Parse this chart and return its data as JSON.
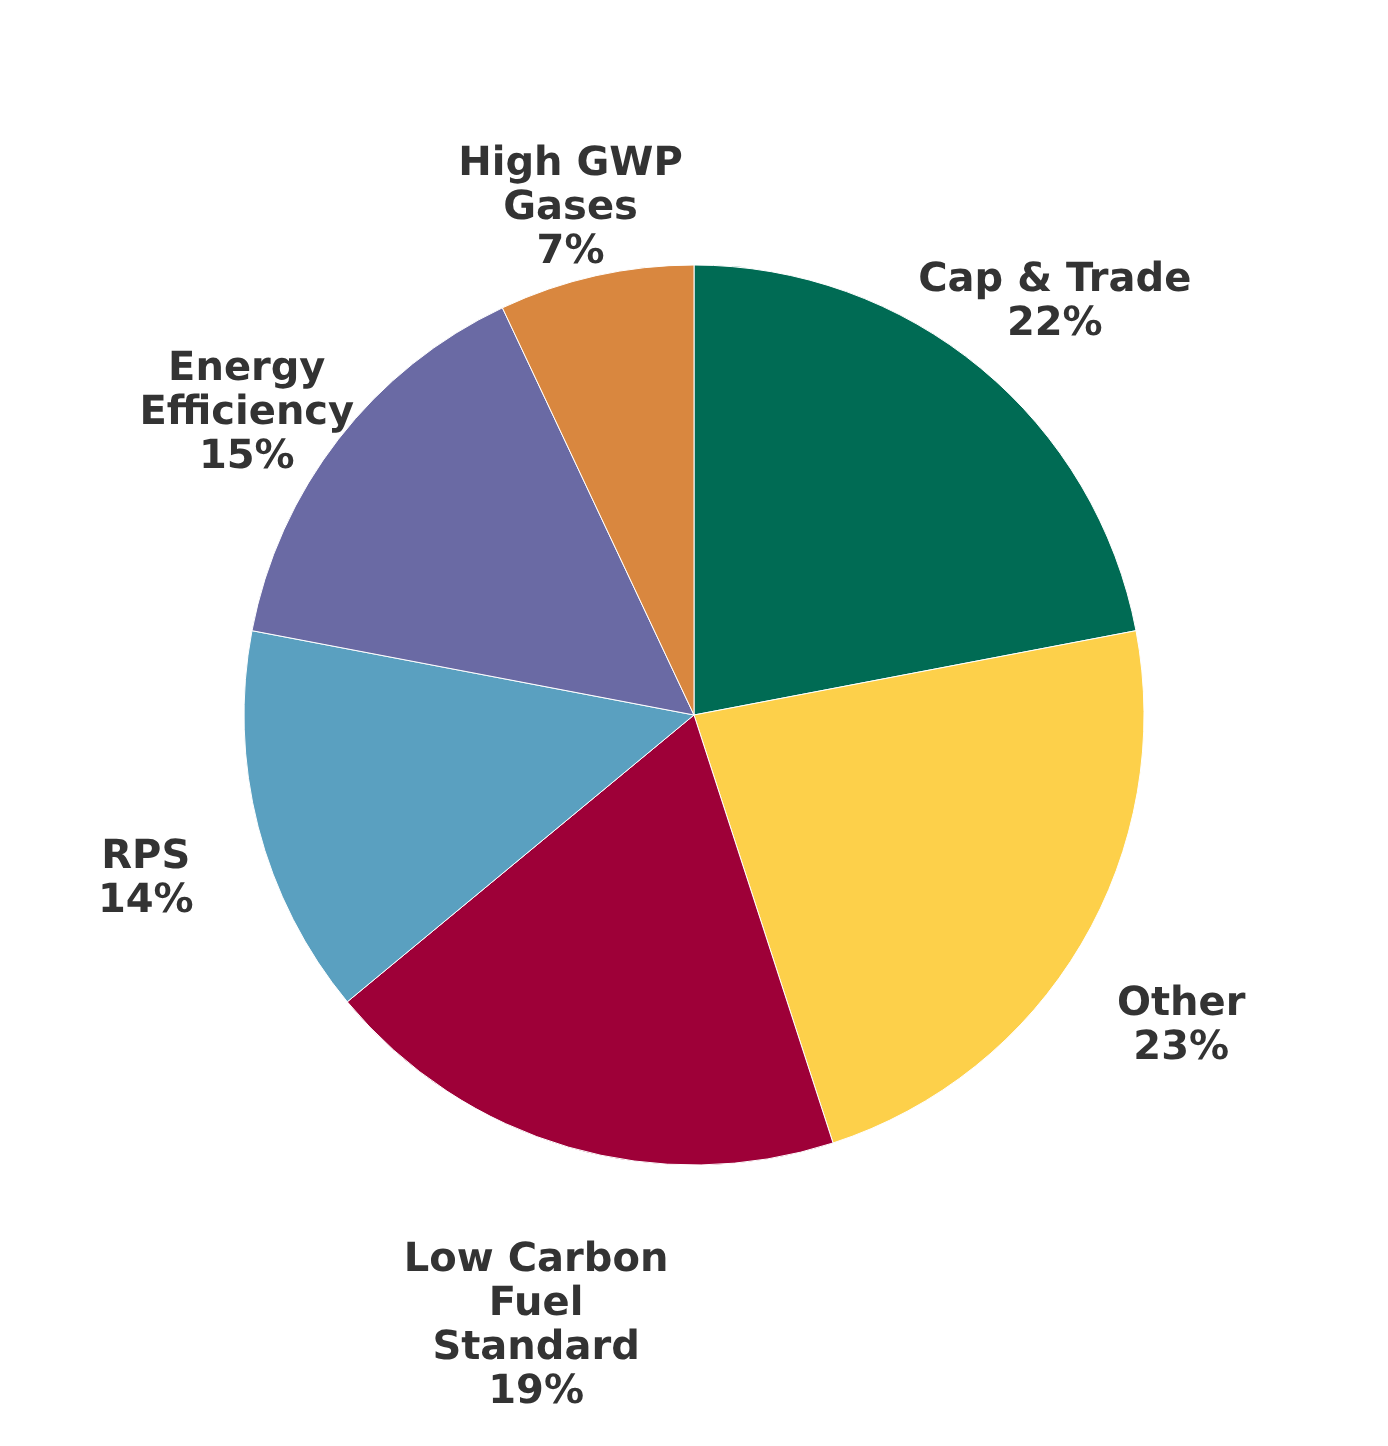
{
  "chart_data": {
    "type": "pie",
    "categories": [
      "Cap & Trade",
      "Other",
      "Low Carbon Fuel Standard",
      "RPS",
      "Energy Efficiency",
      "High GWP Gases"
    ],
    "values": [
      22,
      23,
      19,
      14,
      15,
      7
    ],
    "value_labels": [
      "22%",
      "23%",
      "19%",
      "14%",
      "15%",
      "7%"
    ],
    "colors": [
      "#006b54",
      "#fdd04a",
      "#9e0038",
      "#5aa0c0",
      "#6a6aa4",
      "#d9873f"
    ]
  }
}
